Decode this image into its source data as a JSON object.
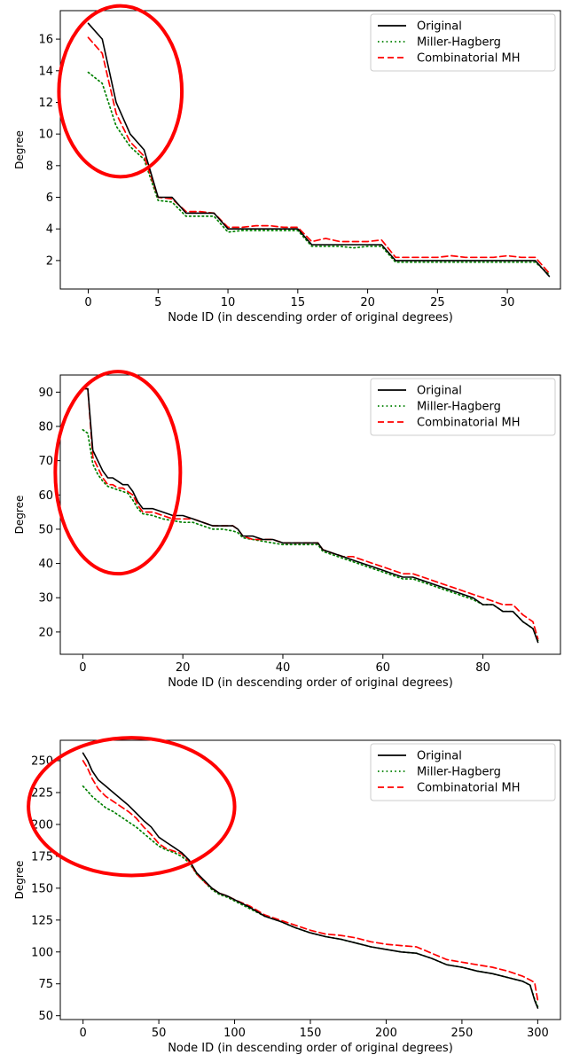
{
  "chart_data": [
    {
      "type": "line",
      "xlabel": "Node ID (in descending order of original degrees)",
      "ylabel": "Degree",
      "xlim": [
        -2,
        33.8
      ],
      "ylim": [
        0.2,
        17.8
      ],
      "xticks": [
        0,
        5,
        10,
        15,
        20,
        25,
        30
      ],
      "yticks": [
        2,
        4,
        6,
        8,
        10,
        12,
        14,
        16
      ],
      "legend_position": "top-right",
      "annotation": "red ellipse highlighting high-degree nodes",
      "highlight_ellipse": {
        "cx": 2.3,
        "cy": 12.7,
        "rx": 4.4,
        "ry": 5.4
      },
      "series": [
        {
          "name": "Original",
          "color": "#000000",
          "style": "solid",
          "x": [
            0,
            1,
            2,
            3,
            4,
            5,
            6,
            7,
            8,
            9,
            10,
            11,
            12,
            13,
            14,
            15,
            16,
            17,
            18,
            19,
            20,
            21,
            22,
            23,
            24,
            25,
            26,
            27,
            28,
            29,
            30,
            31,
            32,
            33
          ],
          "y": [
            17,
            16,
            12,
            10,
            9,
            6,
            6,
            5,
            5,
            5,
            4,
            4,
            4,
            4,
            4,
            4,
            3,
            3,
            3,
            3,
            3,
            3,
            2,
            2,
            2,
            2,
            2,
            2,
            2,
            2,
            2,
            2,
            2,
            1
          ]
        },
        {
          "name": "Miller-Hagberg",
          "color": "#008000",
          "style": "dotted",
          "x": [
            0,
            1,
            2,
            3,
            4,
            5,
            6,
            7,
            8,
            9,
            10,
            11,
            12,
            13,
            14,
            15,
            16,
            17,
            18,
            19,
            20,
            21,
            22,
            23,
            24,
            25,
            26,
            27,
            28,
            29,
            30,
            31,
            32,
            33
          ],
          "y": [
            13.9,
            13.2,
            10.5,
            9.2,
            8.4,
            5.8,
            5.7,
            4.8,
            4.8,
            4.8,
            3.8,
            3.9,
            3.9,
            3.9,
            3.9,
            3.9,
            2.9,
            2.9,
            2.9,
            2.8,
            2.9,
            2.9,
            1.9,
            1.9,
            1.9,
            1.9,
            1.9,
            1.9,
            1.9,
            1.9,
            1.9,
            1.9,
            1.9,
            1.1
          ]
        },
        {
          "name": "Combinatorial MH",
          "color": "#ff0000",
          "style": "dashed",
          "x": [
            0,
            1,
            2,
            3,
            4,
            5,
            6,
            7,
            8,
            9,
            10,
            11,
            12,
            13,
            14,
            15,
            16,
            17,
            18,
            19,
            20,
            21,
            22,
            23,
            24,
            25,
            26,
            27,
            28,
            29,
            30,
            31,
            32,
            33
          ],
          "y": [
            16.1,
            15.1,
            11.3,
            9.5,
            8.6,
            6.0,
            5.9,
            5.1,
            5.1,
            5.0,
            4.1,
            4.1,
            4.2,
            4.2,
            4.1,
            4.1,
            3.2,
            3.4,
            3.2,
            3.2,
            3.2,
            3.3,
            2.2,
            2.2,
            2.2,
            2.2,
            2.3,
            2.2,
            2.2,
            2.2,
            2.3,
            2.2,
            2.2,
            1.2
          ]
        }
      ]
    },
    {
      "type": "line",
      "xlabel": "Node ID (in descending order of original degrees)",
      "ylabel": "Degree",
      "xlim": [
        -4.5,
        95.5
      ],
      "ylim": [
        13.5,
        95
      ],
      "xticks": [
        0,
        20,
        40,
        60,
        80
      ],
      "yticks": [
        20,
        30,
        40,
        50,
        60,
        70,
        80,
        90
      ],
      "legend_position": "top-right",
      "annotation": "red ellipse highlighting high-degree nodes",
      "highlight_ellipse": {
        "cx": 7,
        "cy": 66.5,
        "rx": 12.5,
        "ry": 29.5
      },
      "series": [
        {
          "name": "Original",
          "color": "#000000",
          "style": "solid",
          "x": [
            0,
            1,
            2,
            3,
            4,
            5,
            6,
            7,
            8,
            9,
            10,
            11,
            12,
            14,
            16,
            18,
            20,
            22,
            24,
            26,
            28,
            30,
            31,
            32,
            34,
            36,
            38,
            40,
            42,
            44,
            46,
            47,
            48,
            50,
            52,
            54,
            56,
            58,
            60,
            62,
            64,
            66,
            68,
            70,
            72,
            74,
            76,
            78,
            80,
            82,
            84,
            86,
            88,
            90,
            91
          ],
          "y": [
            91,
            91,
            73,
            70,
            67,
            65,
            65,
            64,
            63,
            63,
            61,
            58,
            56,
            56,
            55,
            54,
            54,
            53,
            52,
            51,
            51,
            51,
            50,
            48,
            48,
            47,
            47,
            46,
            46,
            46,
            46,
            46,
            44,
            43,
            42,
            41,
            40,
            39,
            38,
            37,
            36,
            36,
            35,
            34,
            33,
            32,
            31,
            30,
            28,
            28,
            26,
            26,
            23,
            21,
            17
          ]
        },
        {
          "name": "Miller-Hagberg",
          "color": "#008000",
          "style": "dotted",
          "x": [
            0,
            1,
            2,
            3,
            4,
            5,
            6,
            7,
            8,
            9,
            10,
            11,
            12,
            14,
            16,
            18,
            20,
            22,
            24,
            26,
            28,
            30,
            31,
            32,
            34,
            36,
            38,
            40,
            42,
            44,
            46,
            47,
            48,
            50,
            52,
            54,
            56,
            58,
            60,
            62,
            64,
            66,
            68,
            70,
            72,
            74,
            76,
            78,
            80,
            82,
            84,
            86,
            88,
            90,
            91
          ],
          "y": [
            79,
            78,
            69,
            66,
            64,
            62.5,
            62,
            61.5,
            61,
            60.5,
            58.5,
            56,
            54.5,
            54,
            53,
            52.5,
            52,
            52,
            51,
            50,
            50,
            49.5,
            49,
            47.5,
            47,
            46.5,
            46,
            45.5,
            45.5,
            45.5,
            45.5,
            45.5,
            43.5,
            42.5,
            41.5,
            40.5,
            39.5,
            38.5,
            37.5,
            36.5,
            35.5,
            35.5,
            34.5,
            33.5,
            32.5,
            31.5,
            30.5,
            29.5,
            28,
            28,
            26,
            26,
            23,
            21,
            17.5
          ]
        },
        {
          "name": "Combinatorial MH",
          "color": "#ff0000",
          "style": "dashed",
          "x": [
            0,
            1,
            2,
            3,
            4,
            5,
            6,
            7,
            8,
            9,
            10,
            11,
            12,
            14,
            16,
            18,
            20,
            22,
            24,
            26,
            28,
            30,
            31,
            32,
            34,
            36,
            38,
            40,
            42,
            44,
            46,
            47,
            48,
            50,
            52,
            54,
            56,
            58,
            60,
            62,
            64,
            66,
            68,
            70,
            72,
            74,
            76,
            78,
            80,
            82,
            84,
            86,
            88,
            90,
            91
          ],
          "y": [
            91,
            91,
            71,
            68,
            65,
            63,
            63,
            62,
            62,
            61,
            60,
            57,
            55,
            55,
            54,
            53,
            53,
            53,
            52,
            51,
            51,
            51,
            50,
            48,
            47,
            47,
            47,
            46,
            46,
            46,
            46,
            46,
            44,
            43,
            42,
            42,
            41,
            40,
            39,
            38,
            37,
            37,
            36,
            35,
            34,
            33,
            32,
            31,
            30,
            29,
            28,
            28,
            25,
            23,
            18
          ]
        }
      ]
    },
    {
      "type": "line",
      "xlabel": "Node ID (in descending order of original degrees)",
      "ylabel": "Degree",
      "xlim": [
        -15,
        315
      ],
      "ylim": [
        47,
        266
      ],
      "xticks": [
        0,
        50,
        100,
        150,
        200,
        250,
        300
      ],
      "yticks": [
        50,
        75,
        100,
        125,
        150,
        175,
        200,
        225,
        250
      ],
      "legend_position": "top-right",
      "annotation": "red ellipse highlighting high-degree nodes",
      "highlight_ellipse": {
        "cx": 32,
        "cy": 214,
        "rx": 68,
        "ry": 54
      },
      "series": [
        {
          "name": "Original",
          "color": "#000000",
          "style": "solid",
          "x": [
            0,
            3,
            6,
            10,
            15,
            20,
            25,
            30,
            35,
            40,
            45,
            50,
            55,
            60,
            65,
            70,
            75,
            80,
            85,
            90,
            95,
            100,
            110,
            120,
            130,
            140,
            150,
            160,
            170,
            180,
            190,
            200,
            210,
            220,
            230,
            240,
            250,
            260,
            270,
            280,
            290,
            295,
            298,
            300
          ],
          "y": [
            256,
            250,
            242,
            235,
            230,
            225,
            220,
            215,
            209,
            203,
            198,
            190,
            186,
            182,
            178,
            172,
            162,
            156,
            150,
            146,
            144,
            141,
            135,
            128,
            124,
            119,
            115,
            112,
            110,
            107,
            104,
            102,
            100,
            99,
            95,
            90,
            88,
            85,
            83,
            80,
            77,
            74,
            62,
            56
          ]
        },
        {
          "name": "Miller-Hagberg",
          "color": "#008000",
          "style": "dotted",
          "x": [
            0,
            3,
            6,
            10,
            15,
            20,
            25,
            30,
            35,
            40,
            45,
            50,
            55,
            60,
            65,
            70,
            75,
            80,
            85,
            90,
            95,
            100,
            110,
            120,
            130,
            140,
            150,
            160,
            170,
            180,
            190,
            200,
            210,
            220,
            230,
            240,
            250,
            260,
            270,
            280,
            290,
            295,
            298,
            300
          ],
          "y": [
            230,
            226,
            222,
            218,
            213,
            210,
            206,
            202,
            198,
            193,
            188,
            183,
            180,
            178,
            175,
            170,
            161,
            155,
            149,
            145,
            143,
            140,
            134,
            128,
            124,
            119,
            115,
            112,
            110,
            107,
            104,
            102,
            100,
            99,
            95,
            90,
            88,
            85,
            83,
            80,
            77,
            74,
            63,
            57
          ]
        },
        {
          "name": "Combinatorial MH",
          "color": "#ff0000",
          "style": "dashed",
          "x": [
            0,
            3,
            6,
            10,
            15,
            20,
            25,
            30,
            35,
            40,
            45,
            50,
            55,
            60,
            65,
            70,
            75,
            80,
            85,
            90,
            95,
            100,
            110,
            120,
            130,
            140,
            150,
            160,
            170,
            180,
            190,
            200,
            210,
            220,
            230,
            240,
            250,
            260,
            270,
            280,
            290,
            295,
            298,
            300
          ],
          "y": [
            250,
            244,
            236,
            228,
            222,
            218,
            214,
            210,
            205,
            198,
            192,
            185,
            181,
            179,
            177,
            171,
            161,
            155,
            150,
            146,
            144,
            141,
            136,
            129,
            125,
            121,
            117,
            114,
            113,
            111,
            108,
            106,
            105,
            104,
            99,
            94,
            92,
            90,
            88,
            85,
            81,
            78,
            76,
            62
          ]
        }
      ]
    }
  ]
}
